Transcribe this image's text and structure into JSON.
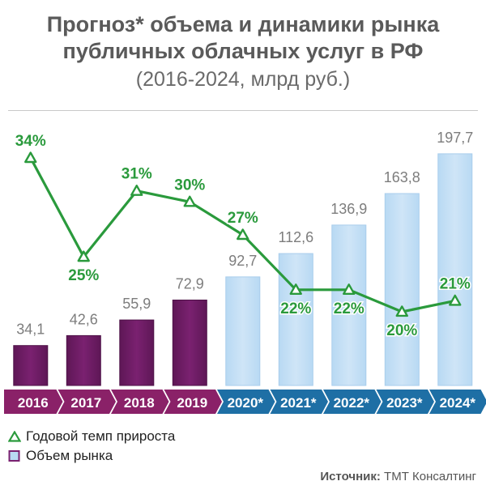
{
  "title": {
    "line1": "Прогноз* объема и динамики рынка",
    "line2": "публичных облачных услуг в РФ",
    "subtitle": "(2016-2024, млрд руб.)"
  },
  "legend": {
    "growth_label": "Годовой темп прироста",
    "volume_label": "Объем рынка"
  },
  "source": {
    "label": "Источник:",
    "value": "ТМТ Консалтинг"
  },
  "colors": {
    "actual_bar": "#7a2170",
    "forecast_bar": "#cfe5f7",
    "actual_axis": "#8a2168",
    "forecast_axis": "#1e6fa5",
    "growth_line": "#2a9a3c",
    "value_label": "#7d7d7d"
  },
  "chart_data": {
    "type": "bar",
    "categories": [
      "2016",
      "2017",
      "2018",
      "2019",
      "2020*",
      "2021*",
      "2022*",
      "2023*",
      "2024*"
    ],
    "series": [
      {
        "values": [
          34.1,
          42.6,
          55.9,
          72.9,
          92.7,
          112.6,
          136.9,
          163.8,
          197.7
        ],
        "value_labels": [
          "34,1",
          "42,6",
          "55,9",
          "72,9",
          "92,7",
          "112,6",
          "136,9",
          "163,8",
          "197,7"
        ],
        "forecast": [
          false,
          false,
          false,
          false,
          true,
          true,
          true,
          true,
          true
        ]
      },
      {
        "type": "line",
        "values": [
          34,
          25,
          31,
          30,
          27,
          22,
          22,
          20,
          21
        ],
        "value_labels": [
          "34%",
          "25%",
          "31%",
          "30%",
          "27%",
          "22%",
          "22%",
          "20%",
          "21%"
        ],
        "label_positions": [
          "above",
          "below",
          "above",
          "above",
          "above",
          "below",
          "below",
          "below",
          "above"
        ]
      }
    ],
    "ylim": [
      0,
      200
    ],
    "grid": false,
    "legend_position": "bottom-left"
  }
}
